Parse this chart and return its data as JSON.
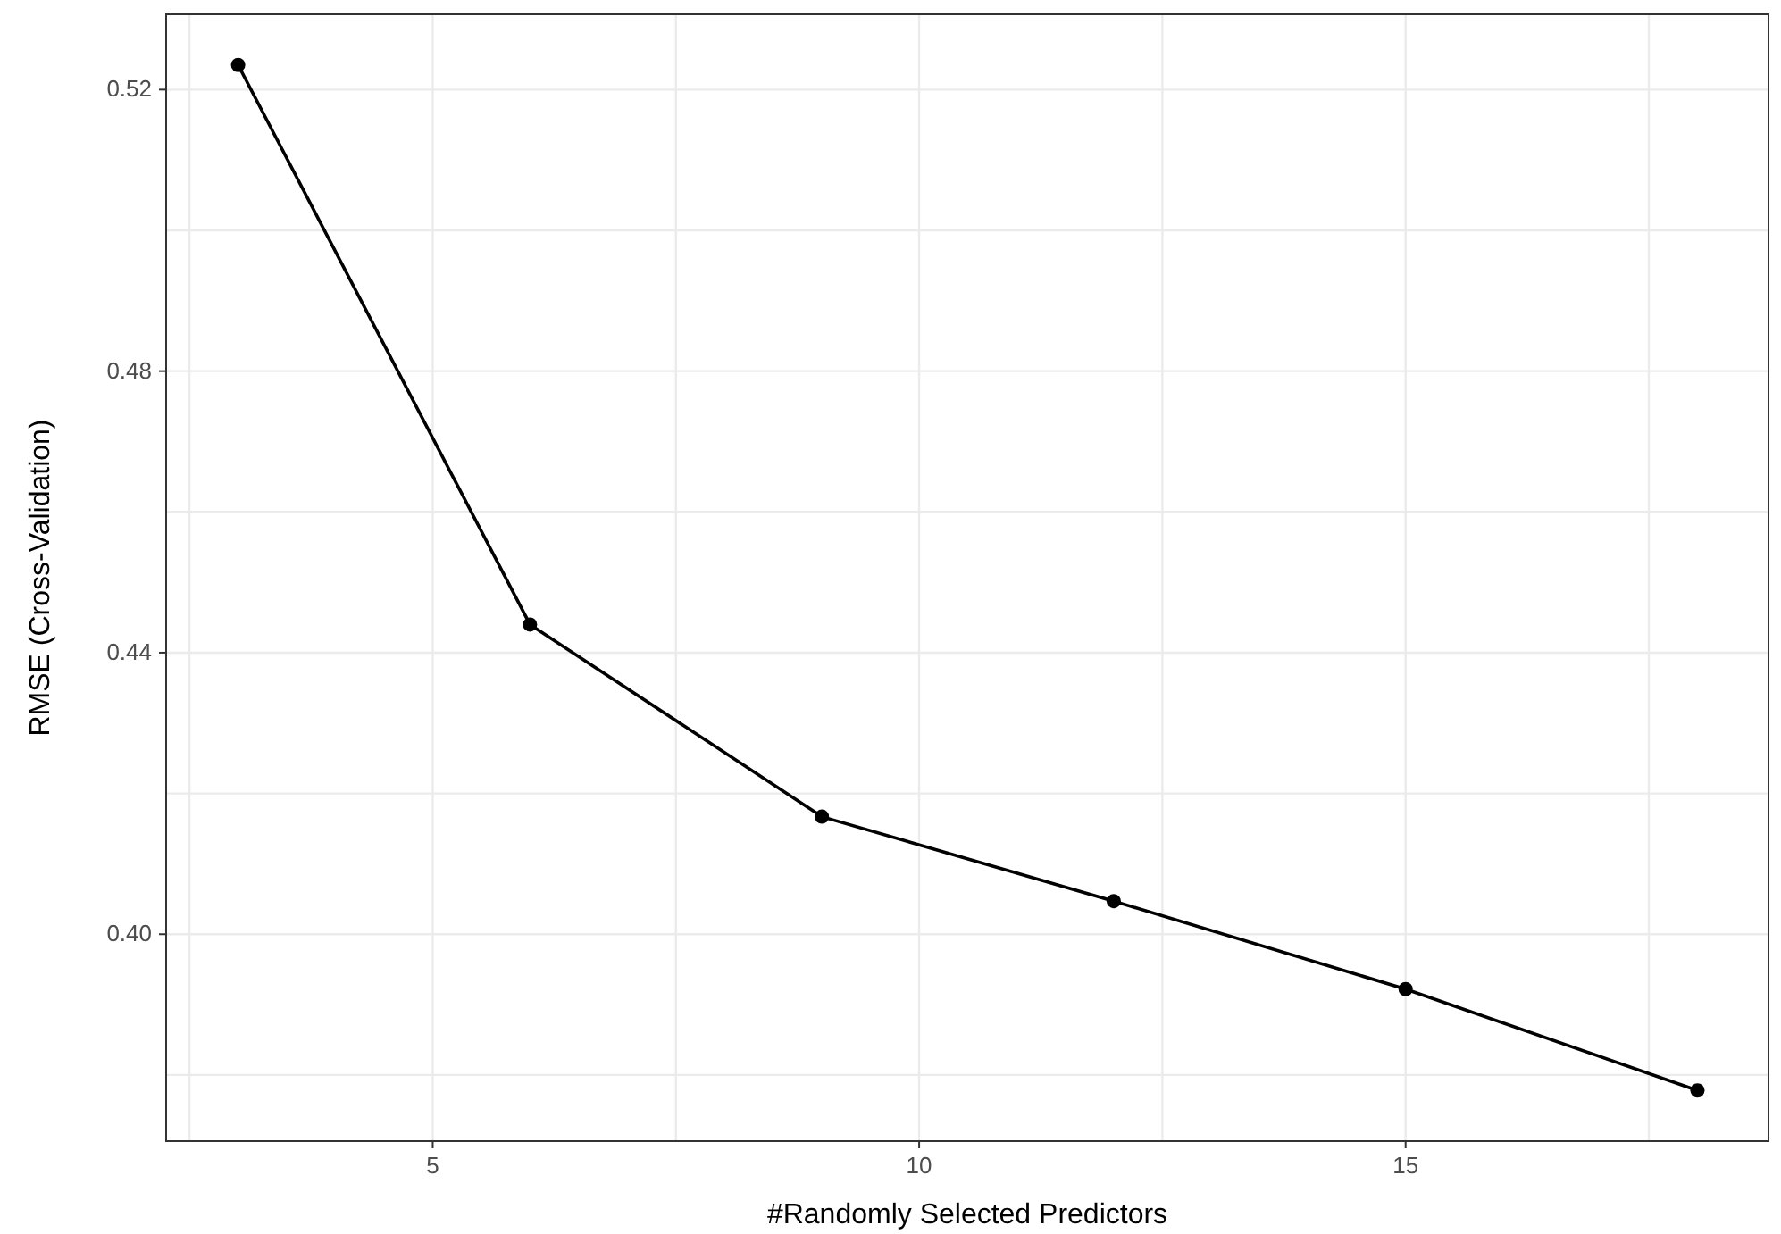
{
  "chart_data": {
    "type": "line",
    "xlabel": "#Randomly Selected Predictors",
    "ylabel": "RMSE (Cross-Validation)",
    "x": [
      3,
      6,
      9,
      12,
      15,
      18
    ],
    "series": [
      {
        "color": "#000000",
        "values": [
          0.5235,
          0.444,
          0.4167,
          0.4047,
          0.3922,
          0.3778
        ]
      }
    ],
    "xlim": [
      2.26,
      18.73
    ],
    "xticks": [
      {
        "value": 2.5,
        "label": null
      },
      5,
      {
        "value": 7.5,
        "label": null
      },
      10,
      {
        "value": 12.5,
        "label": null
      },
      15,
      {
        "value": 17.5,
        "label": null
      }
    ],
    "ylim": [
      0.3706,
      0.5307
    ],
    "yticks": [
      {
        "value": 0.38,
        "label": null
      },
      {
        "value": 0.4,
        "label": "0.40"
      },
      {
        "value": 0.42,
        "label": null
      },
      {
        "value": 0.44,
        "label": "0.44"
      },
      {
        "value": 0.46,
        "label": null
      },
      {
        "value": 0.48,
        "label": "0.48"
      },
      {
        "value": 0.5,
        "label": null
      },
      {
        "value": 0.52,
        "label": "0.52"
      }
    ],
    "grid": true,
    "marker": "circle",
    "line_style": "solid"
  }
}
